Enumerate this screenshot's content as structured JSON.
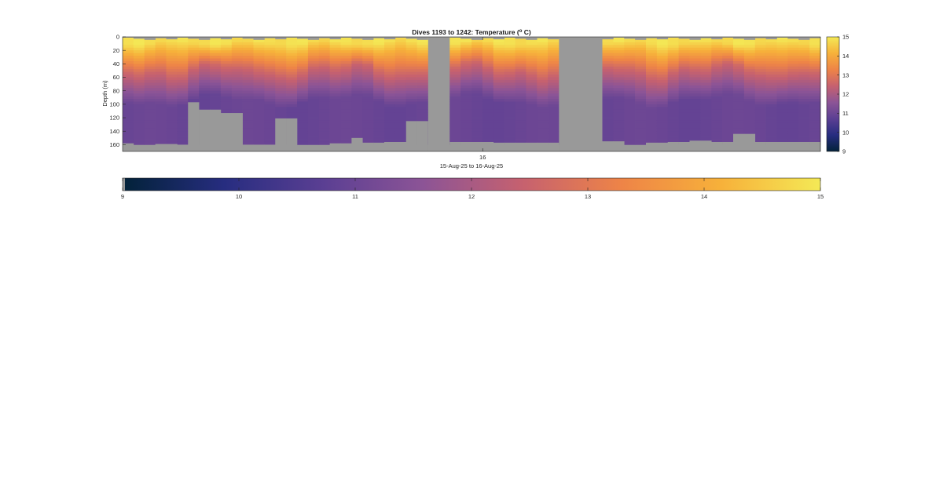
{
  "chart_data": {
    "type": "heatmap",
    "title_main": "Dives 1193 to 1242: Temperature (",
    "title_sup": "o",
    "title_end": " C)",
    "xlabel": "15-Aug-25 to 16-Aug-25",
    "ylabel": "Depth (m)",
    "x_tick_labels": [
      "16"
    ],
    "y_tick_labels": [
      "0",
      "20",
      "40",
      "60",
      "80",
      "100",
      "120",
      "140",
      "160"
    ],
    "ylim": [
      0,
      170
    ],
    "y_direction": "reversed",
    "colorbar_tick_labels": [
      "9",
      "10",
      "11",
      "12",
      "13",
      "14",
      "15"
    ],
    "clim": [
      9,
      15
    ],
    "colormap": [
      "#03223a",
      "#272d80",
      "#5b3f93",
      "#8c5496",
      "#c6616f",
      "#ee8447",
      "#f7b13a",
      "#f4e956"
    ],
    "nodata_color": "#999999",
    "profile_segments": [
      1,
      1,
      1,
      1,
      1,
      1,
      1,
      1,
      1,
      1,
      1,
      1,
      1,
      1,
      1,
      1,
      1,
      1,
      1,
      1,
      1,
      1,
      1,
      1,
      1,
      1,
      1,
      1,
      0,
      0,
      1,
      1,
      1,
      1,
      1,
      1,
      1,
      1,
      1,
      1,
      0,
      0,
      0,
      0,
      1,
      1,
      1,
      1,
      1,
      1,
      1,
      1,
      1,
      1,
      1,
      1,
      1,
      1,
      1,
      1,
      1,
      1,
      1,
      1
    ],
    "bottom_depth_m": [
      158,
      162,
      162,
      159,
      159,
      160,
      97,
      108,
      108,
      113,
      113,
      160,
      160,
      160,
      121,
      121,
      163,
      170,
      170,
      158,
      158,
      150,
      157,
      157,
      156,
      156,
      125,
      125,
      120,
      156,
      156,
      156,
      156,
      156,
      157,
      157,
      157,
      157,
      157,
      157,
      156,
      156,
      157,
      157,
      155,
      155,
      170,
      170,
      157,
      157,
      156,
      156,
      154,
      154,
      156,
      156,
      144,
      144,
      156,
      156,
      156,
      156,
      156,
      156
    ],
    "max_depth_m": [
      160,
      160,
      160,
      160,
      160,
      160,
      160,
      160,
      160,
      160,
      160,
      160,
      160,
      160,
      160,
      160,
      160,
      160,
      160,
      160,
      160,
      160,
      160,
      160,
      160,
      160,
      160,
      160,
      160,
      160,
      160,
      160,
      160,
      160,
      160,
      160,
      160,
      160,
      160,
      160,
      160,
      160,
      160,
      160,
      160,
      160,
      160,
      160,
      160,
      160,
      160,
      160,
      160,
      160,
      160,
      160,
      160,
      160,
      160,
      160,
      160,
      160,
      160,
      160
    ]
  }
}
